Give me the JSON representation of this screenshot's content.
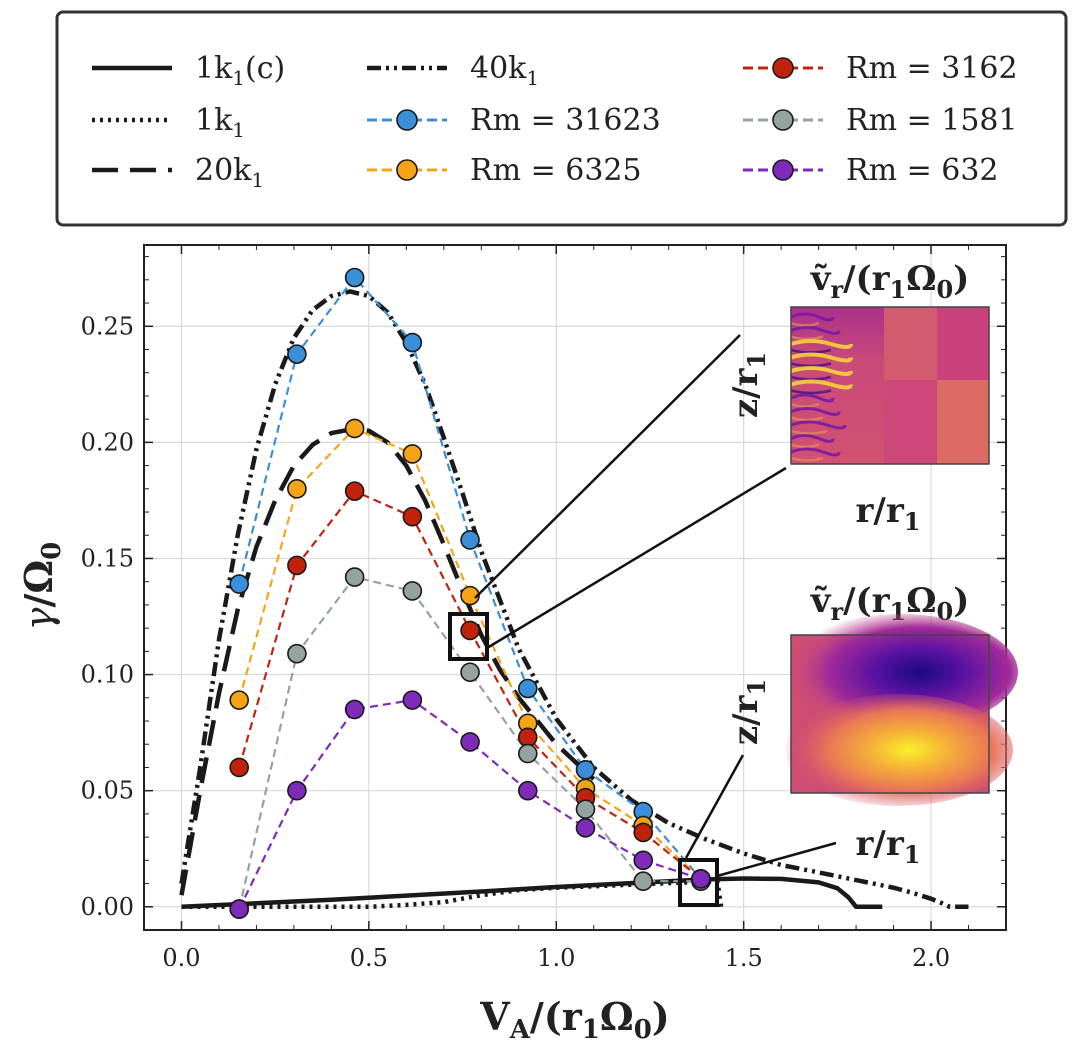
{
  "chart_data": {
    "type": "line",
    "xlabel": "V_A/(r_1 Ω_0)",
    "ylabel": "γ/Ω_0",
    "xlim": [
      -0.1,
      2.2
    ],
    "ylim": [
      -0.01,
      0.285
    ],
    "xticks": [
      0.0,
      0.5,
      1.0,
      1.5,
      2.0
    ],
    "xtick_labels": [
      "0.0",
      "0.5",
      "1.0",
      "1.5",
      "2.0"
    ],
    "yticks": [
      0.0,
      0.05,
      0.1,
      0.15,
      0.2,
      0.25
    ],
    "ytick_labels": [
      "0.00",
      "0.05",
      "0.10",
      "0.15",
      "0.20",
      "0.25"
    ],
    "grid": true,
    "legend_position": "top (outside)",
    "curves": [
      {
        "name": "1k1(c)",
        "label_main": "1k",
        "label_sub": "1",
        "label_tail": "(c)",
        "style": "solid",
        "x": [
          0.0,
          0.2,
          0.4,
          0.6,
          0.8,
          1.0,
          1.2,
          1.3,
          1.4,
          1.5,
          1.6,
          1.7,
          1.75,
          1.78,
          1.8,
          1.87
        ],
        "y": [
          0.0,
          0.0015,
          0.003,
          0.0048,
          0.0066,
          0.0085,
          0.0102,
          0.011,
          0.0118,
          0.0122,
          0.012,
          0.0105,
          0.008,
          0.004,
          0.0,
          0.0
        ]
      },
      {
        "name": "1k1",
        "label_main": "1k",
        "label_sub": "1",
        "label_tail": "",
        "style": "dotted",
        "x": [
          0.0,
          0.2,
          0.4,
          0.5,
          0.6,
          0.7,
          0.8,
          0.9,
          1.0,
          1.1,
          1.2,
          1.3,
          1.4,
          1.43,
          1.44
        ],
        "y": [
          0.0,
          0.0,
          0.0,
          0.0,
          0.0008,
          0.002,
          0.005,
          0.0072,
          0.0082,
          0.0088,
          0.0095,
          0.0102,
          0.0108,
          0.011,
          0.0
        ]
      },
      {
        "name": "20k1",
        "label_main": "20k",
        "label_sub": "1",
        "label_tail": "",
        "style": "dashed",
        "x": [
          0.0,
          0.05,
          0.1,
          0.15,
          0.2,
          0.25,
          0.3,
          0.35,
          0.4,
          0.45,
          0.5,
          0.55,
          0.6,
          0.65,
          0.7,
          0.75,
          0.8,
          0.85,
          0.9,
          1.0,
          1.1
        ],
        "y": [
          0.005,
          0.05,
          0.092,
          0.128,
          0.155,
          0.175,
          0.19,
          0.199,
          0.204,
          0.2055,
          0.205,
          0.2,
          0.19,
          0.175,
          0.156,
          0.136,
          0.117,
          0.102,
          0.09,
          0.07,
          0.055
        ]
      },
      {
        "name": "40k1",
        "label_main": "40k",
        "label_sub": "1",
        "label_tail": "",
        "style": "dashdotdot",
        "x": [
          0.0,
          0.05,
          0.1,
          0.15,
          0.2,
          0.25,
          0.3,
          0.35,
          0.4,
          0.45,
          0.5,
          0.55,
          0.6,
          0.65,
          0.7,
          0.75,
          0.8,
          0.9,
          1.0,
          1.1,
          1.2,
          1.3,
          1.4,
          1.5,
          1.6,
          1.7,
          1.8,
          1.9,
          1.95,
          2.0,
          2.03,
          2.05,
          2.1
        ],
        "y": [
          0.01,
          0.06,
          0.115,
          0.16,
          0.197,
          0.225,
          0.245,
          0.257,
          0.263,
          0.265,
          0.263,
          0.256,
          0.243,
          0.225,
          0.202,
          0.178,
          0.153,
          0.111,
          0.081,
          0.06,
          0.046,
          0.036,
          0.029,
          0.023,
          0.018,
          0.0148,
          0.0115,
          0.0082,
          0.006,
          0.0035,
          0.0015,
          0.0,
          0.0
        ]
      }
    ],
    "series": [
      {
        "name": "Rm = 31623",
        "color": "#3b8fd8",
        "x": [
          0.154,
          0.308,
          0.462,
          0.616,
          0.77,
          0.924,
          1.078,
          1.232,
          1.386
        ],
        "y": [
          0.139,
          0.238,
          0.271,
          0.243,
          0.158,
          0.094,
          0.059,
          0.041,
          0.012
        ]
      },
      {
        "name": "Rm = 6325",
        "color": "#f5a418",
        "x": [
          0.154,
          0.308,
          0.462,
          0.616,
          0.77,
          0.924,
          1.078,
          1.232,
          1.386
        ],
        "y": [
          0.089,
          0.18,
          0.206,
          0.195,
          0.134,
          0.079,
          0.051,
          0.035,
          0.012
        ]
      },
      {
        "name": "Rm = 3162",
        "color": "#c0220c",
        "x": [
          0.154,
          0.308,
          0.462,
          0.616,
          0.77,
          0.924,
          1.078,
          1.232,
          1.386
        ],
        "y": [
          0.06,
          0.147,
          0.179,
          0.168,
          0.119,
          0.073,
          0.047,
          0.032,
          0.012
        ]
      },
      {
        "name": "Rm = 1581",
        "color": "#95a3a0",
        "x": [
          0.154,
          0.308,
          0.462,
          0.616,
          0.77,
          0.924,
          1.078,
          1.232,
          1.386
        ],
        "y": [
          -0.001,
          0.109,
          0.142,
          0.136,
          0.101,
          0.066,
          0.042,
          0.011,
          0.011
        ]
      },
      {
        "name": "Rm = 632",
        "color": "#7d2bb8",
        "x": [
          0.154,
          0.308,
          0.462,
          0.616,
          0.77,
          0.924,
          1.078,
          1.232,
          1.386
        ],
        "y": [
          -0.001,
          0.05,
          0.085,
          0.089,
          0.071,
          0.05,
          0.034,
          0.02,
          0.012
        ]
      }
    ],
    "insets": [
      {
        "title": "ṽ_r/(r_1Ω_0)",
        "ylabel": "z/r_1",
        "xlabel": "r/r_1",
        "colormap": "plasma",
        "highlight_point": {
          "x": 0.77,
          "y": 0.119
        }
      },
      {
        "title": "ṽ_r/(r_1Ω_0)",
        "ylabel": "z/r_1",
        "xlabel": "r/r_1",
        "colormap": "plasma",
        "highlight_point": {
          "x": 1.386,
          "y": 0.012
        }
      }
    ]
  }
}
